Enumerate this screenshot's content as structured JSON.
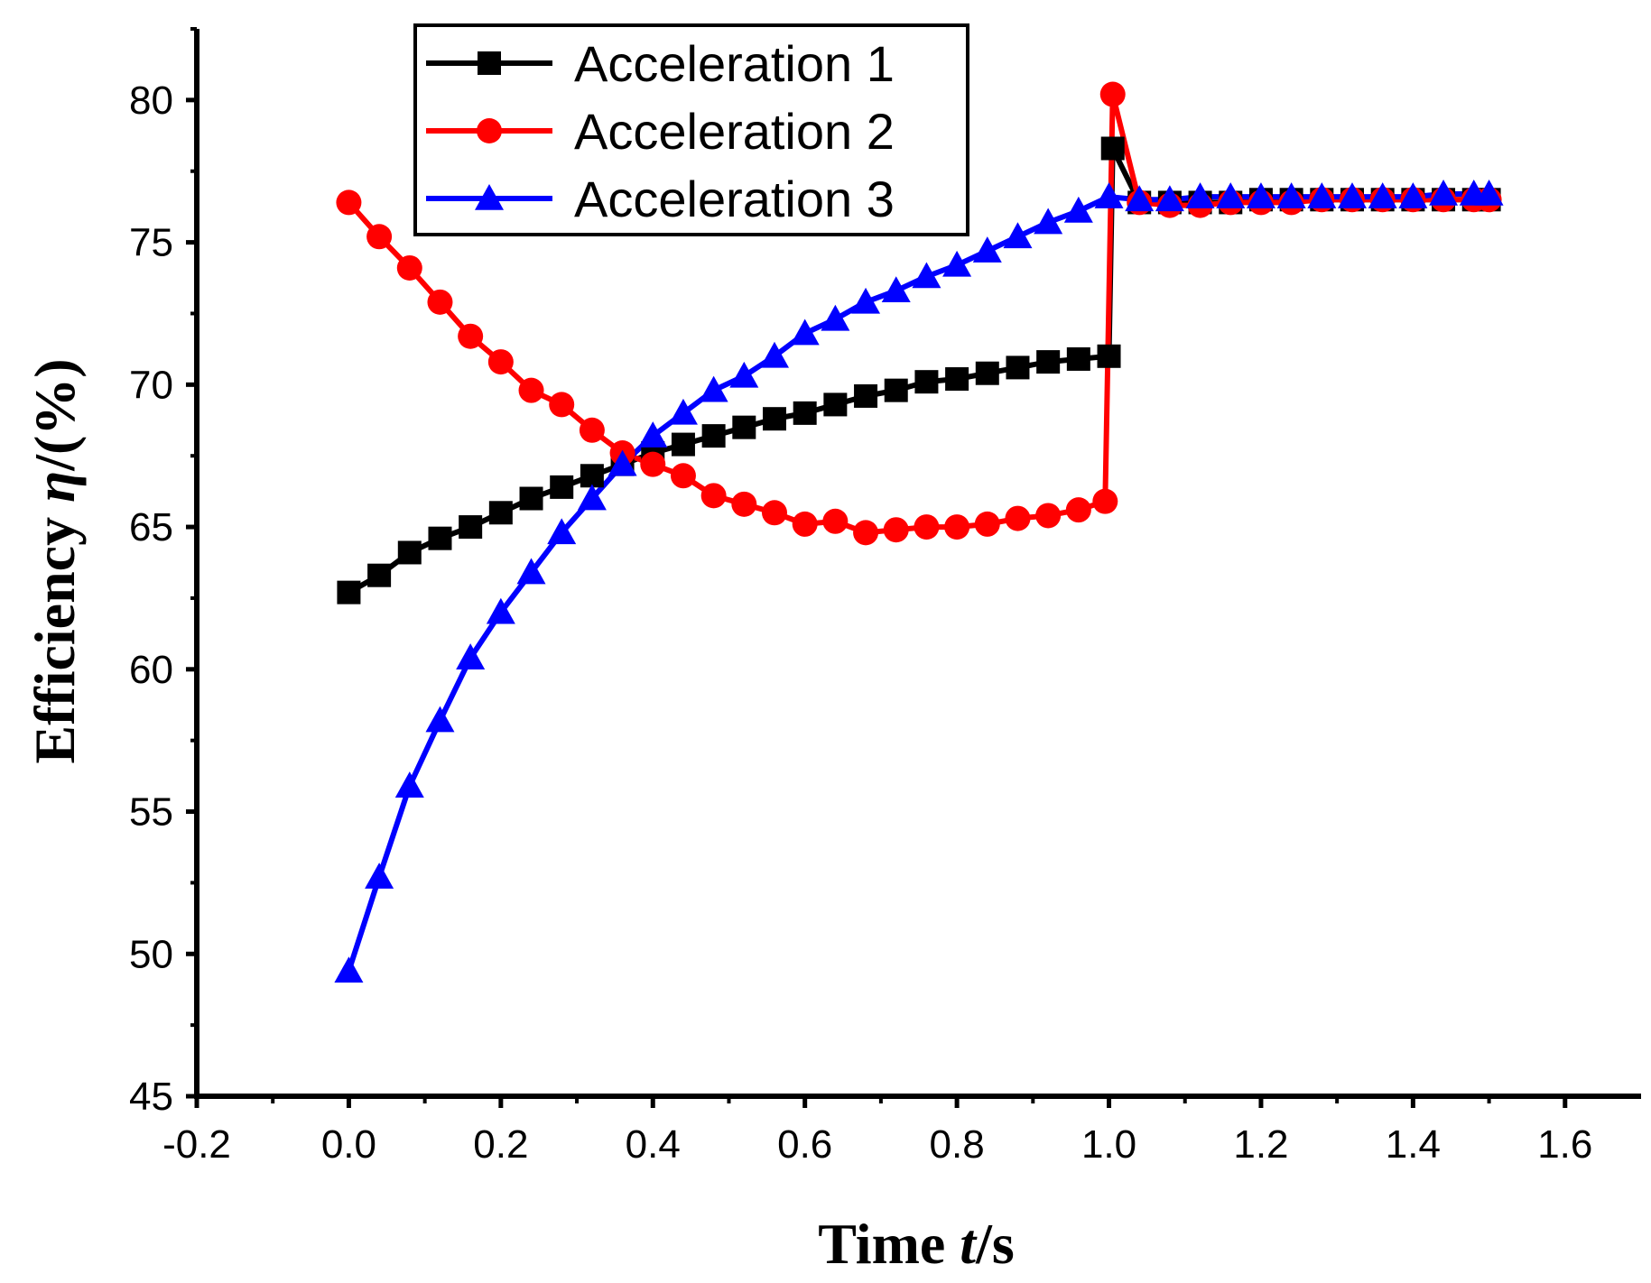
{
  "chart_data": {
    "type": "line",
    "title": "",
    "xlabel": "Time t/s",
    "xlabel_parts": {
      "text": "Time ",
      "var": "t",
      "unit": "/s"
    },
    "ylabel": "Efficiency η/(%)",
    "ylabel_parts": {
      "text": "Efficiency  ",
      "var": "η",
      "unit": "/(%)"
    },
    "xlim": [
      -0.2,
      1.7
    ],
    "ylim": [
      45,
      82.5
    ],
    "xticks": [
      -0.2,
      0.0,
      0.2,
      0.4,
      0.6,
      0.8,
      1.0,
      1.2,
      1.4,
      1.6
    ],
    "xtick_labels": [
      "-0.2",
      "0.0",
      "0.2",
      "0.4",
      "0.6",
      "0.8",
      "1.0",
      "1.2",
      "1.4",
      "1.6"
    ],
    "yticks": [
      45,
      50,
      55,
      60,
      65,
      70,
      75,
      80
    ],
    "ytick_labels": [
      "45",
      "50",
      "55",
      "60",
      "65",
      "70",
      "75",
      "80"
    ],
    "grid": false,
    "legend_position": "top-left",
    "series": [
      {
        "name": "Acceleration 1",
        "color": "#000000",
        "marker": "square",
        "x": [
          0.0,
          0.04,
          0.08,
          0.12,
          0.16,
          0.2,
          0.24,
          0.28,
          0.32,
          0.36,
          0.4,
          0.44,
          0.48,
          0.52,
          0.56,
          0.6,
          0.64,
          0.68,
          0.72,
          0.76,
          0.8,
          0.84,
          0.88,
          0.92,
          0.96,
          1.0,
          1.005,
          1.04,
          1.08,
          1.12,
          1.16,
          1.2,
          1.24,
          1.28,
          1.32,
          1.36,
          1.4,
          1.44,
          1.48,
          1.5
        ],
        "y": [
          62.7,
          63.3,
          64.1,
          64.6,
          65.0,
          65.5,
          66.0,
          66.4,
          66.8,
          67.2,
          67.6,
          67.9,
          68.2,
          68.5,
          68.8,
          69.0,
          69.3,
          69.6,
          69.8,
          70.1,
          70.2,
          70.4,
          70.6,
          70.8,
          70.9,
          71.0,
          78.3,
          76.4,
          76.4,
          76.4,
          76.4,
          76.5,
          76.5,
          76.5,
          76.5,
          76.5,
          76.5,
          76.5,
          76.5,
          76.5
        ]
      },
      {
        "name": "Acceleration 2",
        "color": "#ff0000",
        "marker": "circle",
        "x": [
          0.0,
          0.04,
          0.08,
          0.12,
          0.16,
          0.2,
          0.24,
          0.28,
          0.32,
          0.36,
          0.4,
          0.44,
          0.48,
          0.52,
          0.56,
          0.6,
          0.64,
          0.68,
          0.72,
          0.76,
          0.8,
          0.84,
          0.88,
          0.92,
          0.96,
          0.995,
          1.005,
          1.04,
          1.08,
          1.12,
          1.16,
          1.2,
          1.24,
          1.28,
          1.32,
          1.36,
          1.4,
          1.44,
          1.48,
          1.5
        ],
        "y": [
          76.4,
          75.2,
          74.1,
          72.9,
          71.7,
          70.8,
          69.8,
          69.3,
          68.4,
          67.6,
          67.2,
          66.8,
          66.1,
          65.8,
          65.5,
          65.1,
          65.2,
          64.8,
          64.9,
          65.0,
          65.0,
          65.1,
          65.3,
          65.4,
          65.6,
          65.9,
          80.2,
          76.4,
          76.3,
          76.3,
          76.4,
          76.4,
          76.4,
          76.5,
          76.5,
          76.5,
          76.5,
          76.5,
          76.5,
          76.5
        ]
      },
      {
        "name": "Acceleration 3",
        "color": "#0000ff",
        "marker": "triangle",
        "x": [
          0.0,
          0.04,
          0.08,
          0.12,
          0.16,
          0.2,
          0.24,
          0.28,
          0.32,
          0.36,
          0.4,
          0.44,
          0.48,
          0.52,
          0.56,
          0.6,
          0.64,
          0.68,
          0.72,
          0.76,
          0.8,
          0.84,
          0.88,
          0.92,
          0.96,
          1.0,
          1.04,
          1.08,
          1.12,
          1.16,
          1.2,
          1.24,
          1.28,
          1.32,
          1.36,
          1.4,
          1.44,
          1.48,
          1.5
        ],
        "y": [
          49.4,
          52.7,
          55.9,
          58.2,
          60.4,
          62.0,
          63.4,
          64.8,
          66.0,
          67.2,
          68.2,
          69.0,
          69.8,
          70.3,
          71.0,
          71.8,
          72.3,
          72.9,
          73.3,
          73.8,
          74.2,
          74.7,
          75.2,
          75.7,
          76.1,
          76.6,
          76.5,
          76.5,
          76.6,
          76.6,
          76.6,
          76.6,
          76.6,
          76.6,
          76.6,
          76.6,
          76.7,
          76.7,
          76.7
        ]
      }
    ]
  }
}
